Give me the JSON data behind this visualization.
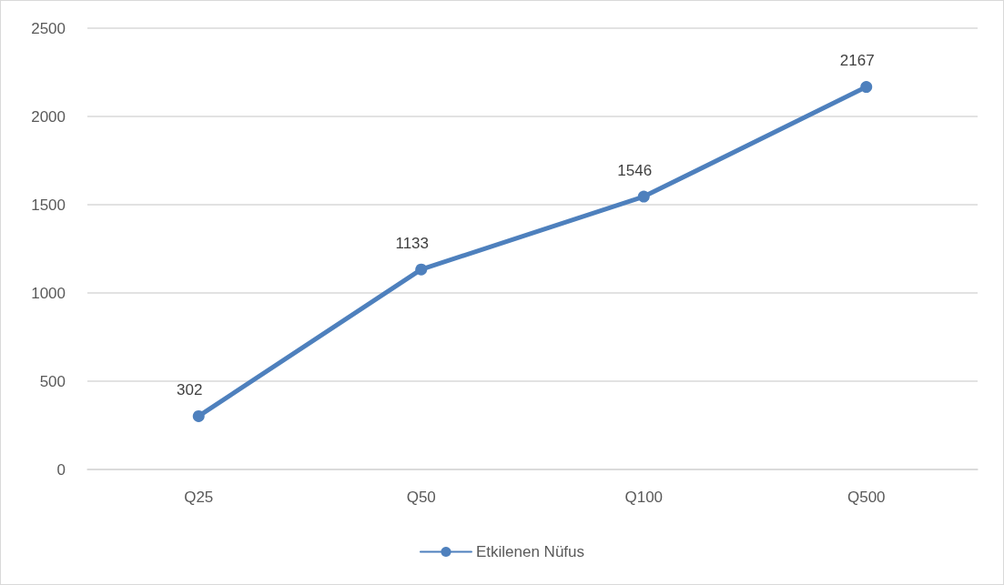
{
  "chart_data": {
    "type": "line",
    "categories": [
      "Q25",
      "Q50",
      "Q100",
      "Q500"
    ],
    "series": [
      {
        "name": "Etkilenen Nüfus",
        "color": "#4e80bd",
        "values": [
          302,
          1133,
          1546,
          2167
        ]
      }
    ],
    "ylim": [
      0,
      2500
    ],
    "yticks": [
      0,
      500,
      1000,
      1500,
      2000,
      2500
    ],
    "grid": "y",
    "legend": "bottom",
    "marker": "circle",
    "line_style": "solid",
    "data_labels": true
  }
}
